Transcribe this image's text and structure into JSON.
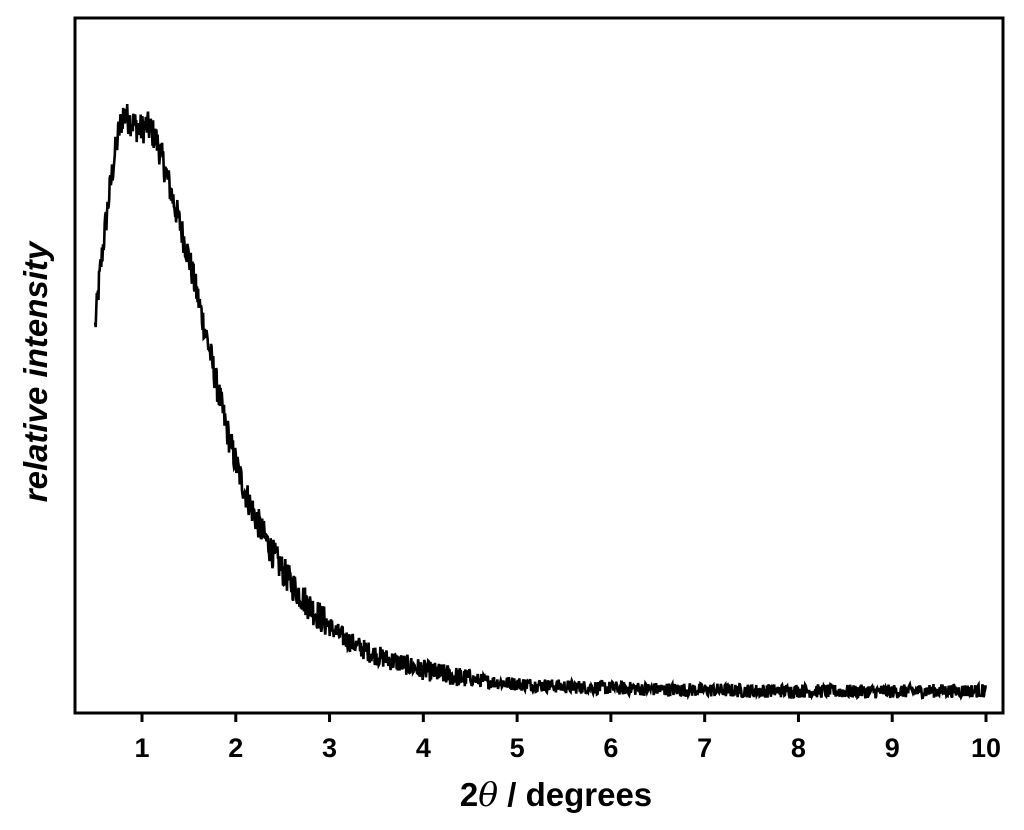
{
  "chart_data": {
    "type": "line",
    "title": "",
    "xlabel_parts": [
      "2",
      "θ",
      " / degrees"
    ],
    "ylabel": "relative intensity",
    "xlim": [
      0.3,
      10.2
    ],
    "ylim": [
      0,
      1
    ],
    "x_ticks": [
      1,
      2,
      3,
      4,
      5,
      6,
      7,
      8,
      9,
      10
    ],
    "x_tick_labels": [
      "1",
      "2",
      "3",
      "4",
      "5",
      "6",
      "7",
      "8",
      "9",
      "10"
    ],
    "y_ticks_shown": false,
    "grid": false,
    "legend": "none",
    "line_color": "#000000",
    "series": [
      {
        "values_xy": [
          [
            0.5,
            0.555
          ],
          [
            0.55,
            0.63
          ],
          [
            0.6,
            0.69
          ],
          [
            0.65,
            0.745
          ],
          [
            0.7,
            0.795
          ],
          [
            0.75,
            0.835
          ],
          [
            0.8,
            0.862
          ],
          [
            0.85,
            0.855
          ],
          [
            0.9,
            0.85
          ],
          [
            0.95,
            0.842
          ],
          [
            1.0,
            0.84
          ],
          [
            1.05,
            0.845
          ],
          [
            1.1,
            0.838
          ],
          [
            1.15,
            0.825
          ],
          [
            1.2,
            0.805
          ],
          [
            1.3,
            0.755
          ],
          [
            1.4,
            0.705
          ],
          [
            1.5,
            0.655
          ],
          [
            1.6,
            0.595
          ],
          [
            1.7,
            0.535
          ],
          [
            1.8,
            0.47
          ],
          [
            1.9,
            0.41
          ],
          [
            2.0,
            0.36
          ],
          [
            2.1,
            0.318
          ],
          [
            2.2,
            0.285
          ],
          [
            2.3,
            0.255
          ],
          [
            2.4,
            0.228
          ],
          [
            2.5,
            0.205
          ],
          [
            2.6,
            0.185
          ],
          [
            2.7,
            0.168
          ],
          [
            2.8,
            0.152
          ],
          [
            2.9,
            0.138
          ],
          [
            3.0,
            0.125
          ],
          [
            3.1,
            0.113
          ],
          [
            3.2,
            0.104
          ],
          [
            3.3,
            0.096
          ],
          [
            3.4,
            0.089
          ],
          [
            3.5,
            0.083
          ],
          [
            3.6,
            0.078
          ],
          [
            3.7,
            0.074
          ],
          [
            3.8,
            0.07
          ],
          [
            3.9,
            0.066
          ],
          [
            4.0,
            0.062
          ],
          [
            4.2,
            0.056
          ],
          [
            4.4,
            0.051
          ],
          [
            4.6,
            0.047
          ],
          [
            4.8,
            0.044
          ],
          [
            5.0,
            0.042
          ],
          [
            5.5,
            0.038
          ],
          [
            6.0,
            0.036
          ],
          [
            6.5,
            0.034
          ],
          [
            7.0,
            0.033
          ],
          [
            7.5,
            0.032
          ],
          [
            8.0,
            0.032
          ],
          [
            8.5,
            0.031
          ],
          [
            9.0,
            0.031
          ],
          [
            9.5,
            0.032
          ],
          [
            10.0,
            0.032
          ]
        ]
      }
    ]
  }
}
